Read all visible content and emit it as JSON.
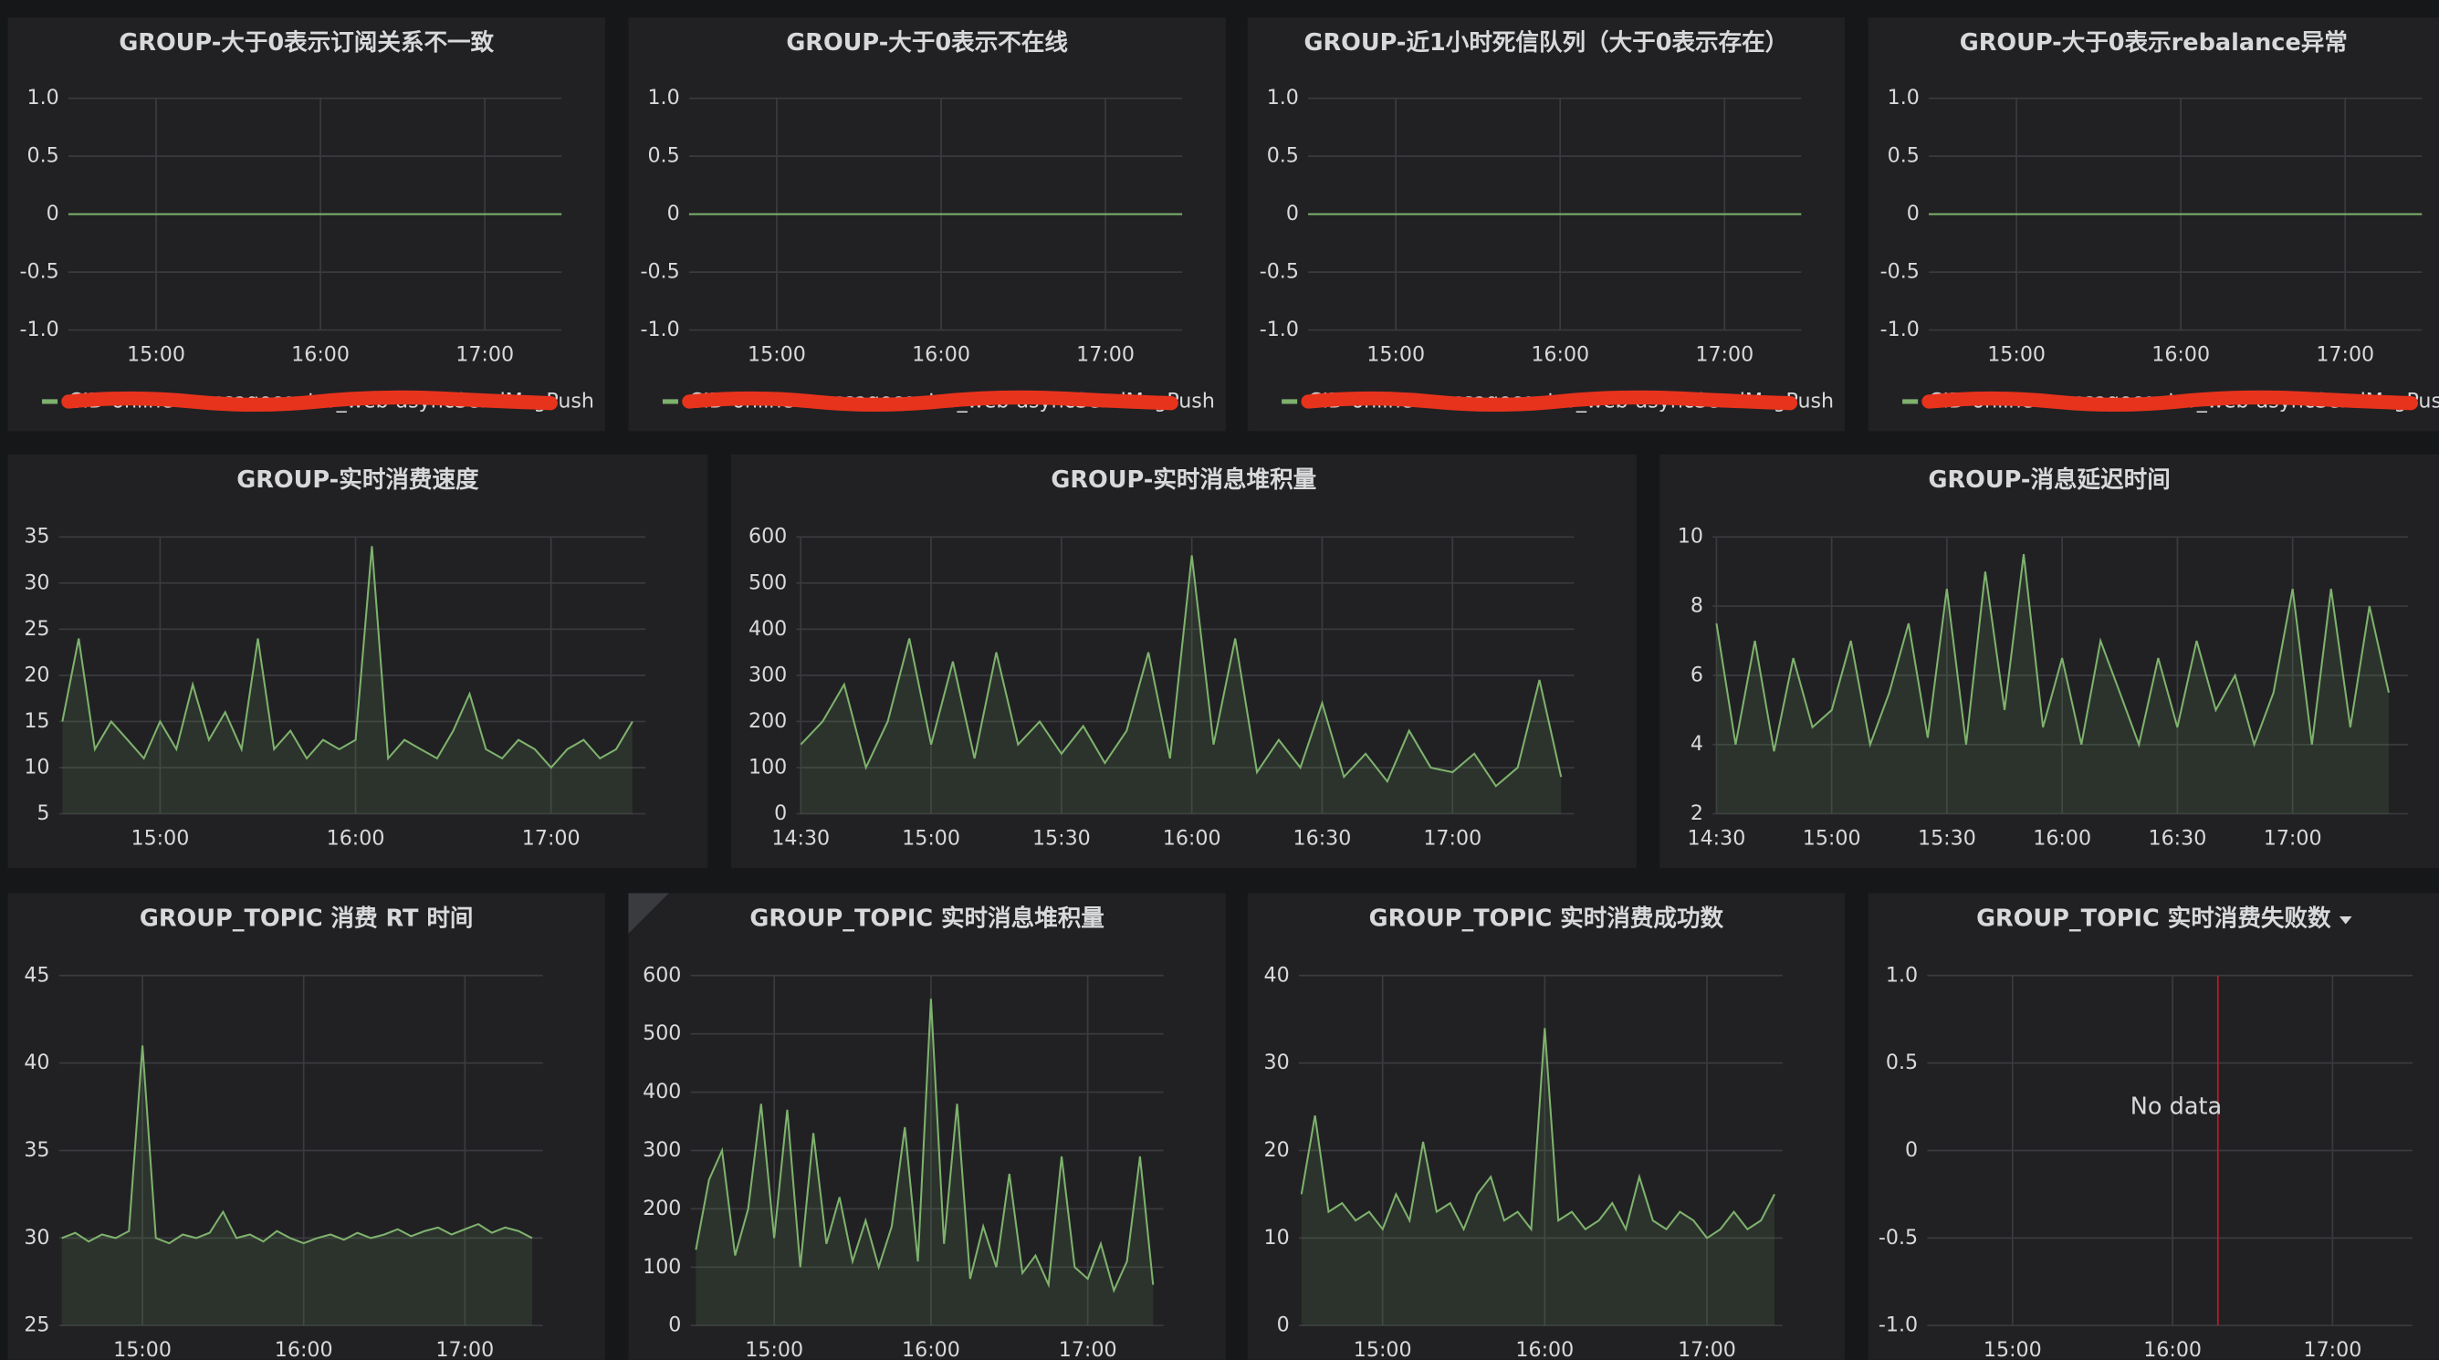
{
  "chart_data": [
    {
      "type": "line",
      "title": "GROUP-大于0表示订阅关系不一致",
      "x": [
        "14:28",
        "17:28"
      ],
      "series": [
        {
          "name": "CID-online-messagecenter_web-asyncSendMsgPush",
          "color": "#7eb26d",
          "values": [
            0,
            0
          ]
        }
      ],
      "xlim": [
        "14:28",
        "17:28"
      ],
      "xticks": [
        "15:00",
        "16:00",
        "17:00"
      ],
      "ylim": [
        -1,
        1
      ],
      "yticks": [
        {
          "value": 1,
          "label": "1.0"
        },
        0.5,
        0,
        -0.5,
        {
          "value": -1,
          "label": "-1.0"
        }
      ],
      "grid": true,
      "legend": "bottom"
    },
    {
      "type": "line",
      "title": "GROUP-大于0表示不在线",
      "x": [
        "14:28",
        "17:28"
      ],
      "series": [
        {
          "name": "CID-online-messagecenter_web-asyncSendMsgPush",
          "color": "#7eb26d",
          "values": [
            0,
            0
          ]
        }
      ],
      "xlim": [
        "14:28",
        "17:28"
      ],
      "xticks": [
        "15:00",
        "16:00",
        "17:00"
      ],
      "ylim": [
        -1,
        1
      ],
      "yticks": [
        {
          "value": 1,
          "label": "1.0"
        },
        0.5,
        0,
        -0.5,
        {
          "value": -1,
          "label": "-1.0"
        }
      ],
      "grid": true,
      "legend": "bottom"
    },
    {
      "type": "line",
      "title": "GROUP-近1小时死信队列（大于0表示存在）",
      "x": [
        "14:28",
        "17:28"
      ],
      "series": [
        {
          "name": "CID-online-messagecenter_web-asyncSendMsgPush",
          "color": "#7eb26d",
          "values": [
            0,
            0
          ]
        }
      ],
      "xlim": [
        "14:28",
        "17:28"
      ],
      "xticks": [
        "15:00",
        "16:00",
        "17:00"
      ],
      "ylim": [
        -1,
        1
      ],
      "yticks": [
        {
          "value": 1,
          "label": "1.0"
        },
        0.5,
        0,
        -0.5,
        {
          "value": -1,
          "label": "-1.0"
        }
      ],
      "grid": true,
      "legend": "bottom"
    },
    {
      "type": "line",
      "title": "GROUP-大于0表示rebalance异常",
      "x": [
        "14:28",
        "17:28"
      ],
      "series": [
        {
          "name": "CID-online-messagecenter_web-asyncSendMsgPush",
          "color": "#7eb26d",
          "values": [
            0,
            0
          ]
        }
      ],
      "xlim": [
        "14:28",
        "17:28"
      ],
      "xticks": [
        "15:00",
        "16:00",
        "17:00"
      ],
      "ylim": [
        -1,
        1
      ],
      "yticks": [
        {
          "value": 1,
          "label": "1.0"
        },
        0.5,
        0,
        -0.5,
        {
          "value": -1,
          "label": "-1.0"
        }
      ],
      "grid": true,
      "legend": "bottom"
    },
    {
      "type": "area",
      "title": "GROUP-实时消费速度",
      "x": [
        "14:30",
        "14:35",
        "14:40",
        "14:45",
        "14:50",
        "14:55",
        "15:00",
        "15:05",
        "15:10",
        "15:15",
        "15:20",
        "15:25",
        "15:30",
        "15:35",
        "15:40",
        "15:45",
        "15:50",
        "15:55",
        "16:00",
        "16:05",
        "16:10",
        "16:15",
        "16:20",
        "16:25",
        "16:30",
        "16:35",
        "16:40",
        "16:45",
        "16:50",
        "16:55",
        "17:00",
        "17:05",
        "17:10",
        "17:15",
        "17:20",
        "17:25"
      ],
      "series": [
        {
          "color": "#7eb26d",
          "values": [
            15,
            24,
            12,
            15,
            13,
            11,
            15,
            12,
            19,
            13,
            16,
            12,
            24,
            12,
            14,
            11,
            13,
            12,
            13,
            34,
            11,
            13,
            12,
            11,
            14,
            18,
            12,
            11,
            13,
            12,
            10,
            12,
            13,
            11,
            12,
            15
          ]
        }
      ],
      "xlim": [
        "14:29",
        "17:29"
      ],
      "xticks": [
        "15:00",
        "16:00",
        "17:00"
      ],
      "ylim": [
        5,
        35
      ],
      "yticks": [
        35,
        30,
        25,
        20,
        15,
        10,
        5
      ],
      "grid": true
    },
    {
      "type": "area",
      "title": "GROUP-实时消息堆积量",
      "x": [
        "14:30",
        "14:35",
        "14:40",
        "14:45",
        "14:50",
        "14:55",
        "15:00",
        "15:05",
        "15:10",
        "15:15",
        "15:20",
        "15:25",
        "15:30",
        "15:35",
        "15:40",
        "15:45",
        "15:50",
        "15:55",
        "16:00",
        "16:05",
        "16:10",
        "16:15",
        "16:20",
        "16:25",
        "16:30",
        "16:35",
        "16:40",
        "16:45",
        "16:50",
        "16:55",
        "17:00",
        "17:05",
        "17:10",
        "17:15",
        "17:20",
        "17:25"
      ],
      "series": [
        {
          "color": "#7eb26d",
          "values": [
            150,
            200,
            280,
            100,
            200,
            380,
            150,
            330,
            120,
            350,
            150,
            200,
            130,
            190,
            110,
            180,
            350,
            120,
            560,
            150,
            380,
            90,
            160,
            100,
            240,
            80,
            130,
            70,
            180,
            100,
            90,
            130,
            60,
            100,
            290,
            80
          ]
        }
      ],
      "xlim": [
        "14:29",
        "17:28"
      ],
      "xticks": [
        "14:30",
        "15:00",
        "15:30",
        "16:00",
        "16:30",
        "17:00"
      ],
      "ylim": [
        0,
        600
      ],
      "yticks": [
        600,
        500,
        400,
        300,
        200,
        100,
        0
      ],
      "grid": true
    },
    {
      "type": "area",
      "title": "GROUP-消息延迟时间",
      "x": [
        "14:30",
        "14:35",
        "14:40",
        "14:45",
        "14:50",
        "14:55",
        "15:00",
        "15:05",
        "15:10",
        "15:15",
        "15:20",
        "15:25",
        "15:30",
        "15:35",
        "15:40",
        "15:45",
        "15:50",
        "15:55",
        "16:00",
        "16:05",
        "16:10",
        "16:15",
        "16:20",
        "16:25",
        "16:30",
        "16:35",
        "16:40",
        "16:45",
        "16:50",
        "16:55",
        "17:00",
        "17:05",
        "17:10",
        "17:15",
        "17:20",
        "17:25"
      ],
      "series": [
        {
          "color": "#7eb26d",
          "values": [
            7.5,
            4,
            7,
            3.8,
            6.5,
            4.5,
            5,
            7,
            4,
            5.5,
            7.5,
            4.2,
            8.5,
            4,
            9,
            5,
            9.5,
            4.5,
            6.5,
            4,
            7,
            5.5,
            4,
            6.5,
            4.5,
            7,
            5,
            6,
            4,
            5.5,
            8.5,
            4,
            8.5,
            4.5,
            8,
            5.5
          ]
        }
      ],
      "xlim": [
        "14:29",
        "17:30"
      ],
      "xticks": [
        "14:30",
        "15:00",
        "15:30",
        "16:00",
        "16:30",
        "17:00"
      ],
      "ylim": [
        2,
        10
      ],
      "yticks": [
        10,
        8,
        6,
        4,
        2
      ],
      "grid": true
    },
    {
      "type": "area",
      "title": "GROUP_TOPIC 消费 RT 时间",
      "x": [
        "14:30",
        "14:35",
        "14:40",
        "14:45",
        "14:50",
        "14:55",
        "15:00",
        "15:05",
        "15:10",
        "15:15",
        "15:20",
        "15:25",
        "15:30",
        "15:35",
        "15:40",
        "15:45",
        "15:50",
        "15:55",
        "16:00",
        "16:05",
        "16:10",
        "16:15",
        "16:20",
        "16:25",
        "16:30",
        "16:35",
        "16:40",
        "16:45",
        "16:50",
        "16:55",
        "17:00",
        "17:05",
        "17:10",
        "17:15",
        "17:20",
        "17:25"
      ],
      "series": [
        {
          "color": "#7eb26d",
          "values": [
            30,
            30.3,
            29.8,
            30.2,
            30,
            30.4,
            41,
            30,
            29.7,
            30.2,
            30,
            30.3,
            31.5,
            30,
            30.2,
            29.8,
            30.4,
            30,
            29.7,
            30,
            30.2,
            29.9,
            30.3,
            30,
            30.2,
            30.5,
            30.1,
            30.4,
            30.6,
            30.2,
            30.5,
            30.8,
            30.3,
            30.6,
            30.4,
            30
          ]
        }
      ],
      "xlim": [
        "14:29",
        "17:29"
      ],
      "xticks": [
        "15:00",
        "16:00",
        "17:00"
      ],
      "ylim": [
        25,
        45
      ],
      "yticks": [
        45,
        40,
        35,
        30,
        25
      ],
      "grid": true
    },
    {
      "type": "area",
      "title": "GROUP_TOPIC 实时消息堆积量",
      "x": [
        "14:30",
        "14:35",
        "14:40",
        "14:45",
        "14:50",
        "14:55",
        "15:00",
        "15:05",
        "15:10",
        "15:15",
        "15:20",
        "15:25",
        "15:30",
        "15:35",
        "15:40",
        "15:45",
        "15:50",
        "15:55",
        "16:00",
        "16:05",
        "16:10",
        "16:15",
        "16:20",
        "16:25",
        "16:30",
        "16:35",
        "16:40",
        "16:45",
        "16:50",
        "16:55",
        "17:00",
        "17:05",
        "17:10",
        "17:15",
        "17:20",
        "17:25"
      ],
      "series": [
        {
          "color": "#7eb26d",
          "values": [
            130,
            250,
            300,
            120,
            200,
            380,
            150,
            370,
            100,
            330,
            140,
            220,
            110,
            180,
            100,
            170,
            340,
            110,
            560,
            140,
            380,
            80,
            170,
            100,
            260,
            90,
            120,
            70,
            290,
            100,
            80,
            140,
            60,
            110,
            290,
            70
          ]
        }
      ],
      "xlim": [
        "14:28",
        "17:29"
      ],
      "xticks": [
        "15:00",
        "16:00",
        "17:00"
      ],
      "ylim": [
        0,
        600
      ],
      "yticks": [
        600,
        500,
        400,
        300,
        200,
        100,
        0
      ],
      "grid": true
    },
    {
      "type": "area",
      "title": "GROUP_TOPIC 实时消费成功数",
      "x": [
        "14:30",
        "14:35",
        "14:40",
        "14:45",
        "14:50",
        "14:55",
        "15:00",
        "15:05",
        "15:10",
        "15:15",
        "15:20",
        "15:25",
        "15:30",
        "15:35",
        "15:40",
        "15:45",
        "15:50",
        "15:55",
        "16:00",
        "16:05",
        "16:10",
        "16:15",
        "16:20",
        "16:25",
        "16:30",
        "16:35",
        "16:40",
        "16:45",
        "16:50",
        "16:55",
        "17:00",
        "17:05",
        "17:10",
        "17:15",
        "17:20",
        "17:25"
      ],
      "series": [
        {
          "color": "#7eb26d",
          "values": [
            15,
            24,
            13,
            14,
            12,
            13,
            11,
            15,
            12,
            21,
            13,
            14,
            11,
            15,
            17,
            12,
            13,
            11,
            34,
            12,
            13,
            11,
            12,
            14,
            11,
            17,
            12,
            11,
            13,
            12,
            10,
            11,
            13,
            11,
            12,
            15
          ]
        }
      ],
      "xlim": [
        "14:29",
        "17:28"
      ],
      "xticks": [
        "15:00",
        "16:00",
        "17:00"
      ],
      "ylim": [
        0,
        40
      ],
      "yticks": [
        40,
        30,
        20,
        10,
        0
      ],
      "grid": true
    },
    {
      "type": "line",
      "title": "GROUP_TOPIC 实时消费失败数",
      "series": [],
      "xlim": [
        "14:28",
        "17:30"
      ],
      "xticks": [
        "15:00",
        "16:00",
        "17:00"
      ],
      "ylim": [
        -1,
        1
      ],
      "yticks": [
        {
          "value": 1,
          "label": "1.0"
        },
        0.5,
        0,
        -0.5,
        {
          "value": -1,
          "label": "-1.0"
        }
      ],
      "grid": true,
      "annotation": "No data",
      "event_x": "16:17"
    }
  ]
}
